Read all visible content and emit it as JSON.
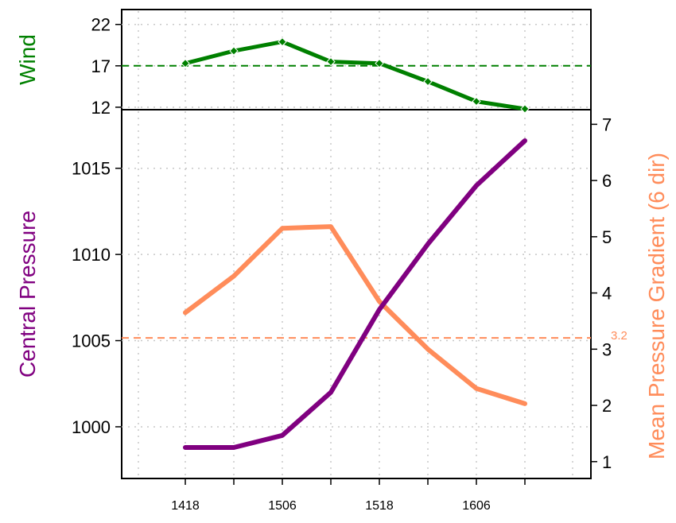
{
  "chart_data": [
    {
      "type": "line",
      "ylabel": "Wind",
      "x_tick_labels": [
        "1418",
        "1506",
        "1518",
        "1606"
      ],
      "yticks": [
        12,
        17,
        22
      ],
      "ylim": [
        11.7,
        23.8
      ],
      "grid": true,
      "reference_line": {
        "value": 17,
        "style": "dashed",
        "color": "#008000"
      },
      "series": [
        {
          "color": "#008000",
          "marker": "diamond",
          "values": [
            17.3,
            18.8,
            19.9,
            17.5,
            17.3,
            15.1,
            12.7,
            11.8
          ]
        }
      ]
    },
    {
      "type": "line",
      "ylabel": "Central Pressure",
      "ylabel_right": "Mean Pressure Gradient (6 dir)",
      "x_tick_labels": [
        "1418",
        "1506",
        "1518",
        "1606"
      ],
      "yticks_left": [
        1000,
        1005,
        1010,
        1015
      ],
      "yticks_right": [
        1,
        2,
        3,
        4,
        5,
        6,
        7
      ],
      "ylim_left": [
        997,
        1018.4
      ],
      "ylim_right": [
        0.7,
        7.26
      ],
      "grid": true,
      "reference_line": {
        "value": 3.2,
        "axis": "right",
        "label": "3.2",
        "style": "dashed",
        "color": "#FF8C5A"
      },
      "series": [
        {
          "axis": "left",
          "color": "#800080",
          "values": [
            998.8,
            998.8,
            999.5,
            1002,
            1006.8,
            1010.6,
            1014,
            1016.6
          ]
        },
        {
          "axis": "right",
          "color": "#FF8C5A",
          "values": [
            3.65,
            4.3,
            5.15,
            5.18,
            3.85,
            3.0,
            2.3,
            2.03
          ]
        }
      ]
    }
  ]
}
